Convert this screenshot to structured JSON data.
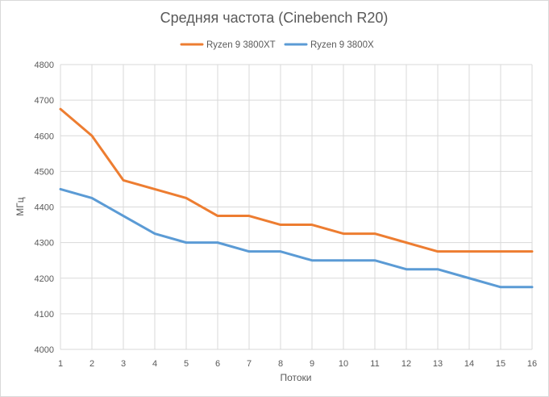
{
  "chart_data": {
    "type": "line",
    "title": "Средняя частота (Cinebench R20)",
    "xlabel": "Потоки",
    "ylabel": "МГц",
    "x": [
      1,
      2,
      3,
      4,
      5,
      6,
      7,
      8,
      9,
      10,
      11,
      12,
      13,
      14,
      15,
      16
    ],
    "ylim": [
      4000,
      4800
    ],
    "yticks": [
      4000,
      4100,
      4200,
      4300,
      4400,
      4500,
      4600,
      4700,
      4800
    ],
    "grid": true,
    "legend_position": "top",
    "series": [
      {
        "name": "Ryzen 9 3800XT",
        "color": "#ED7D31",
        "values": [
          4675,
          4600,
          4475,
          4450,
          4425,
          4375,
          4375,
          4350,
          4350,
          4325,
          4325,
          4300,
          4275,
          4275,
          4275,
          4275
        ]
      },
      {
        "name": "Ryzen 9 3800X",
        "color": "#5B9BD5",
        "values": [
          4450,
          4425,
          4375,
          4325,
          4300,
          4300,
          4275,
          4275,
          4250,
          4250,
          4250,
          4225,
          4225,
          4200,
          4175,
          4175
        ]
      }
    ]
  }
}
